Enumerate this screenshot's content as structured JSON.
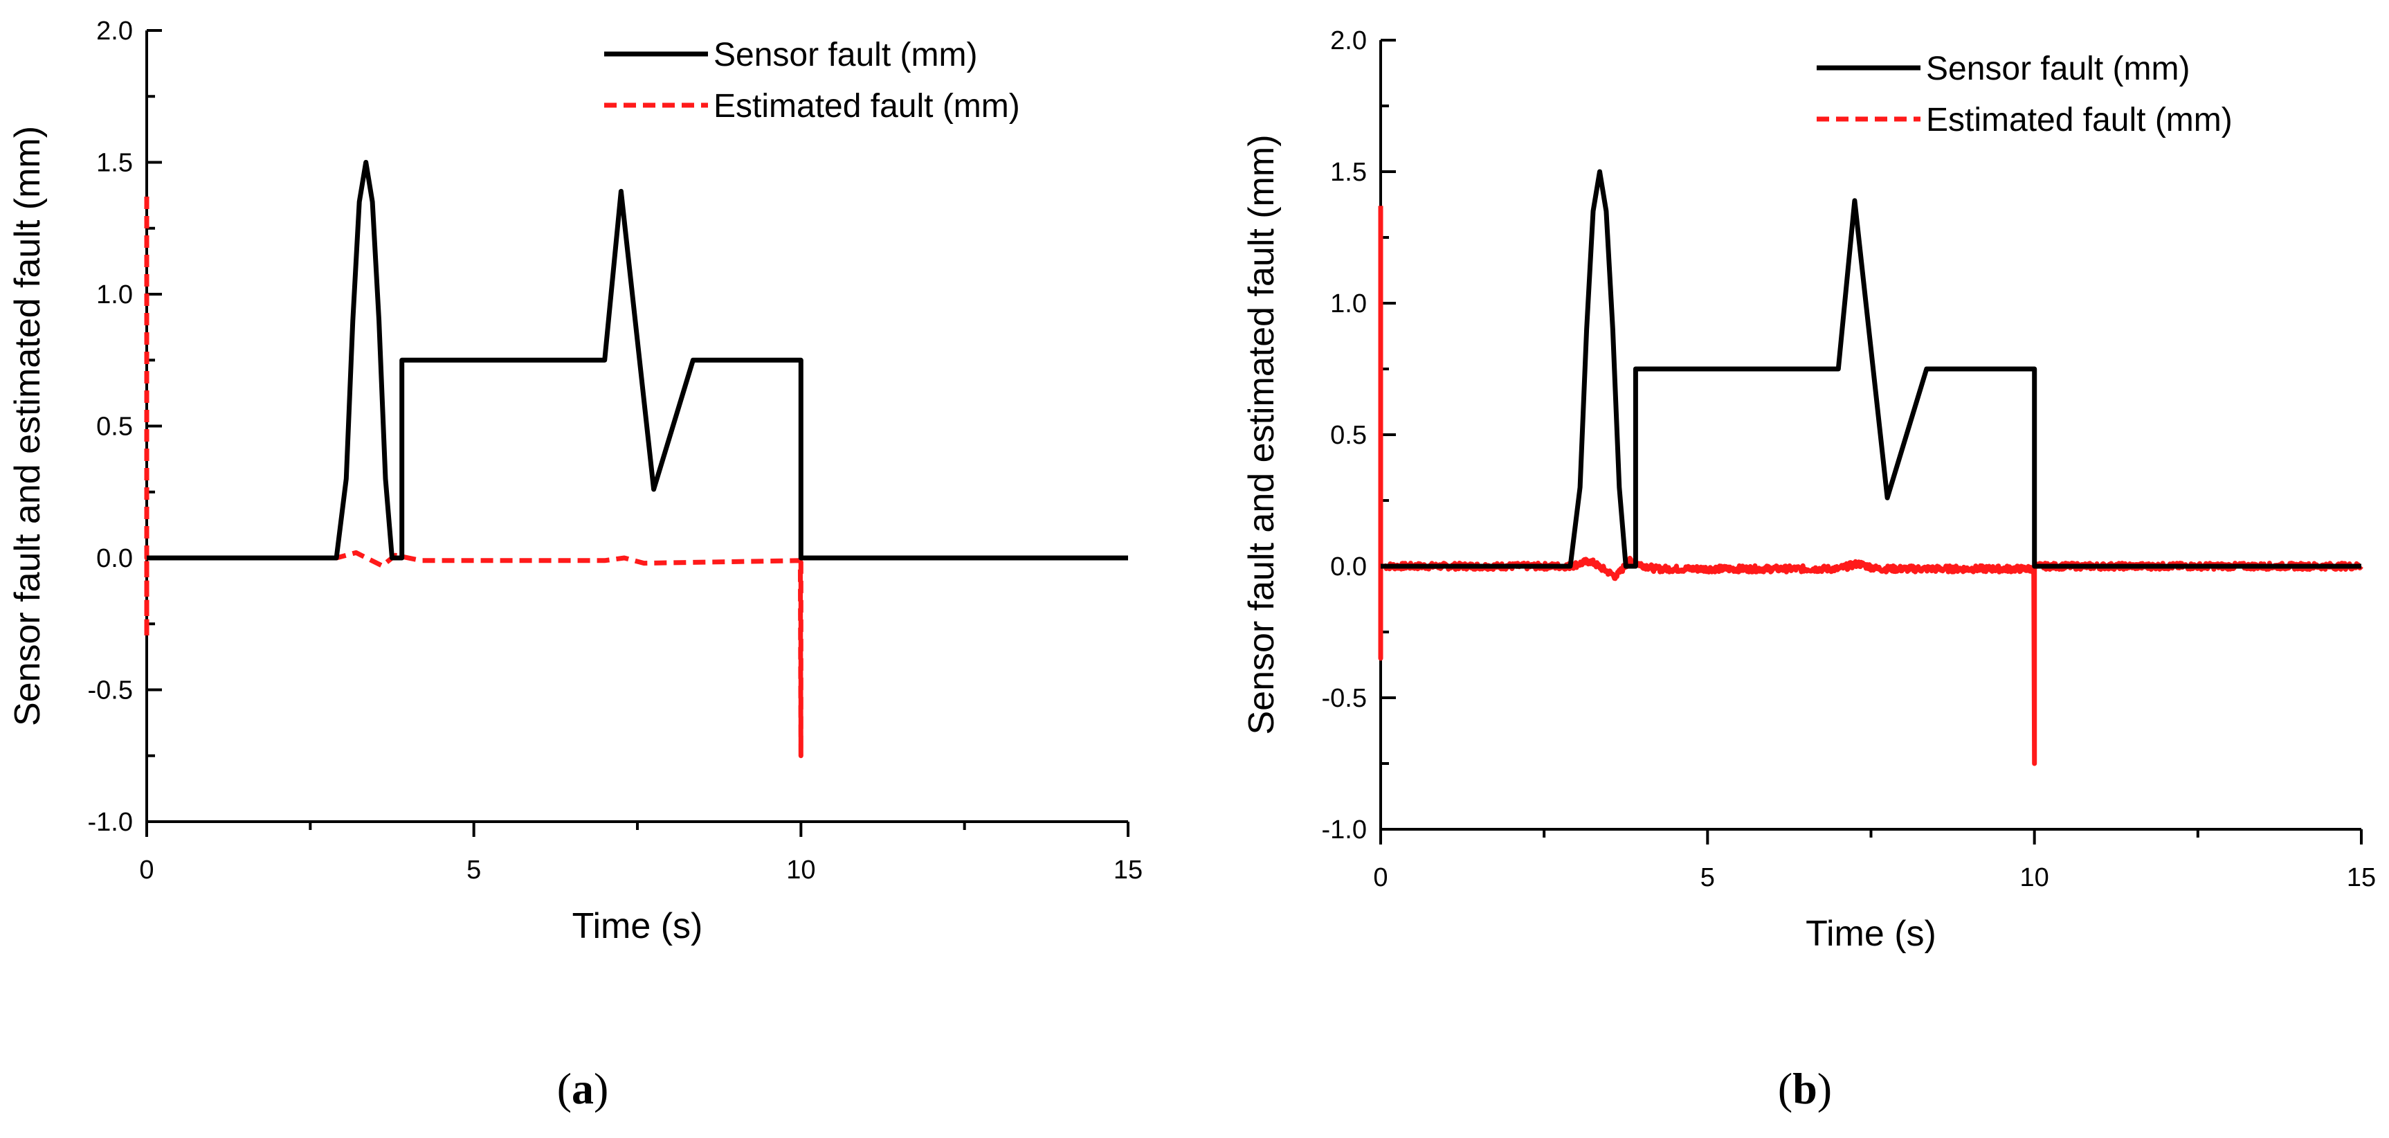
{
  "colors": {
    "sensor": "#000000",
    "estimated": "#ff1a1a",
    "axis": "#000000"
  },
  "chart_data": [
    {
      "panel": "(a)",
      "panel_letter": "a",
      "type": "line",
      "xlabel": "Time (s)",
      "ylabel": "Sensor fault and estimated fault (mm)",
      "xlim": [
        0,
        15
      ],
      "ylim": [
        -1.0,
        2.0
      ],
      "x_ticks": [
        "0",
        "5",
        "10",
        "15"
      ],
      "y_ticks": [
        "-1.0",
        "-0.5",
        "0.0",
        "0.5",
        "1.0",
        "1.5",
        "2.0"
      ],
      "legend_position": "top-right",
      "series": [
        {
          "name": "Sensor fault (mm)",
          "style": "solid",
          "x": [
            0,
            2.9,
            3.05,
            3.15,
            3.25,
            3.35,
            3.45,
            3.55,
            3.65,
            3.75,
            3.9,
            3.9,
            7.0,
            7.25,
            7.75,
            8.35,
            10.0,
            10.0,
            15
          ],
          "y": [
            0,
            0,
            0.3,
            0.9,
            1.35,
            1.5,
            1.35,
            0.9,
            0.3,
            0.0,
            0.0,
            0.75,
            0.75,
            1.39,
            0.26,
            0.75,
            0.75,
            0,
            0
          ]
        },
        {
          "name": "Estimated fault (mm)",
          "style": "dashed",
          "x": [
            0,
            0,
            0,
            0,
            0.05,
            2.9,
            3.2,
            3.6,
            3.8,
            4.2,
            7.0,
            7.3,
            7.6,
            9.99,
            10.0,
            10.0,
            10.02,
            15
          ],
          "y": [
            1.37,
            -0.3,
            0.02,
            0,
            0,
            0,
            0.02,
            -0.03,
            0.01,
            -0.01,
            -0.01,
            0.0,
            -0.02,
            -0.01,
            -0.75,
            0.0,
            0,
            0
          ]
        }
      ]
    },
    {
      "panel": "(b)",
      "panel_letter": "b",
      "type": "line",
      "xlabel": "Time (s)",
      "ylabel": "Sensor fault and estimated fault (mm)",
      "xlim": [
        0,
        15
      ],
      "ylim": [
        -1.0,
        2.0
      ],
      "x_ticks": [
        "0",
        "5",
        "10",
        "15"
      ],
      "y_ticks": [
        "-1.0",
        "-0.5",
        "0.0",
        "0.5",
        "1.0",
        "1.5",
        "2.0"
      ],
      "legend_position": "top-right",
      "series": [
        {
          "name": "Sensor fault (mm)",
          "style": "solid",
          "x": [
            0,
            2.9,
            3.05,
            3.15,
            3.25,
            3.35,
            3.45,
            3.55,
            3.65,
            3.75,
            3.9,
            3.9,
            7.0,
            7.25,
            7.75,
            8.35,
            10.0,
            10.0,
            15
          ],
          "y": [
            0,
            0,
            0.3,
            0.9,
            1.35,
            1.5,
            1.35,
            0.9,
            0.3,
            0.0,
            0.0,
            0.75,
            0.75,
            1.39,
            0.26,
            0.75,
            0.75,
            0,
            0
          ]
        },
        {
          "name": "Estimated fault (mm)",
          "style": "noisy",
          "x": [
            0,
            0,
            0,
            0,
            0.05,
            2.9,
            3.2,
            3.6,
            3.8,
            4.2,
            7.0,
            7.3,
            7.6,
            9.99,
            10.0,
            10.0,
            10.02,
            15
          ],
          "y": [
            1.37,
            -0.35,
            0.02,
            0,
            0,
            0,
            0.02,
            -0.04,
            0.02,
            -0.01,
            -0.01,
            0.01,
            -0.01,
            -0.01,
            -0.75,
            0.0,
            0,
            0
          ],
          "noise_amplitude": 0.012
        }
      ]
    }
  ]
}
